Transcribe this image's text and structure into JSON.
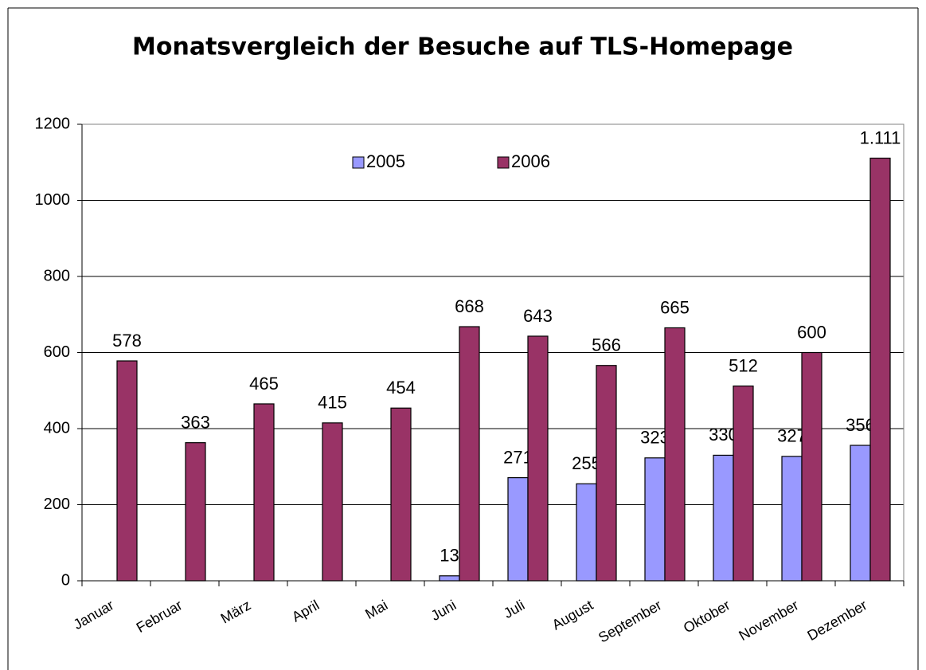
{
  "chart_data": {
    "type": "bar",
    "title": "Monatsvergleich der Besuche auf TLS-Homepage",
    "categories": [
      "Januar",
      "Februar",
      "März",
      "April",
      "Mai",
      "Juni",
      "Juli",
      "August",
      "September",
      "Oktober",
      "November",
      "Dezember"
    ],
    "series": [
      {
        "name": "2005",
        "color": "#9999ff",
        "values": [
          null,
          null,
          null,
          null,
          null,
          13,
          271,
          255,
          323,
          330,
          327,
          356
        ]
      },
      {
        "name": "2006",
        "color": "#993366",
        "values": [
          578,
          363,
          465,
          415,
          454,
          668,
          643,
          566,
          665,
          512,
          600,
          1111
        ],
        "value_labels": [
          "578",
          "363",
          "465",
          "415",
          "454",
          "668",
          "643",
          "566",
          "665",
          "512",
          "600",
          "1.111"
        ]
      }
    ],
    "ylim": [
      0,
      1200
    ],
    "yticks": [
      0,
      200,
      400,
      600,
      800,
      1000,
      1200
    ],
    "grid": true,
    "legend": "top"
  }
}
